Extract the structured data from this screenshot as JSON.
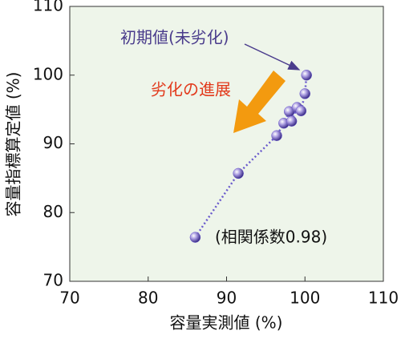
{
  "chart_data": {
    "type": "scatter",
    "x_label": "容量実測値 (%)",
    "y_label": "容量指標算定値 (%)",
    "x": [
      86.0,
      91.5,
      96.4,
      97.3,
      98.0,
      98.3,
      99.0,
      99.5,
      100.0,
      100.2
    ],
    "series": [
      {
        "color": "#6a5acd",
        "values": [
          76.4,
          85.7,
          91.2,
          93.0,
          94.7,
          93.3,
          95.3,
          94.8,
          97.3,
          100.0
        ]
      }
    ],
    "xlim": [
      70,
      110
    ],
    "ylim": [
      70,
      110
    ],
    "xticks": [
      70,
      80,
      90,
      100,
      110
    ],
    "yticks": [
      70,
      80,
      90,
      100,
      110
    ],
    "annotations": [
      "初期値(未劣化)",
      "劣化の進展",
      "(相関係数0.98)"
    ]
  }
}
